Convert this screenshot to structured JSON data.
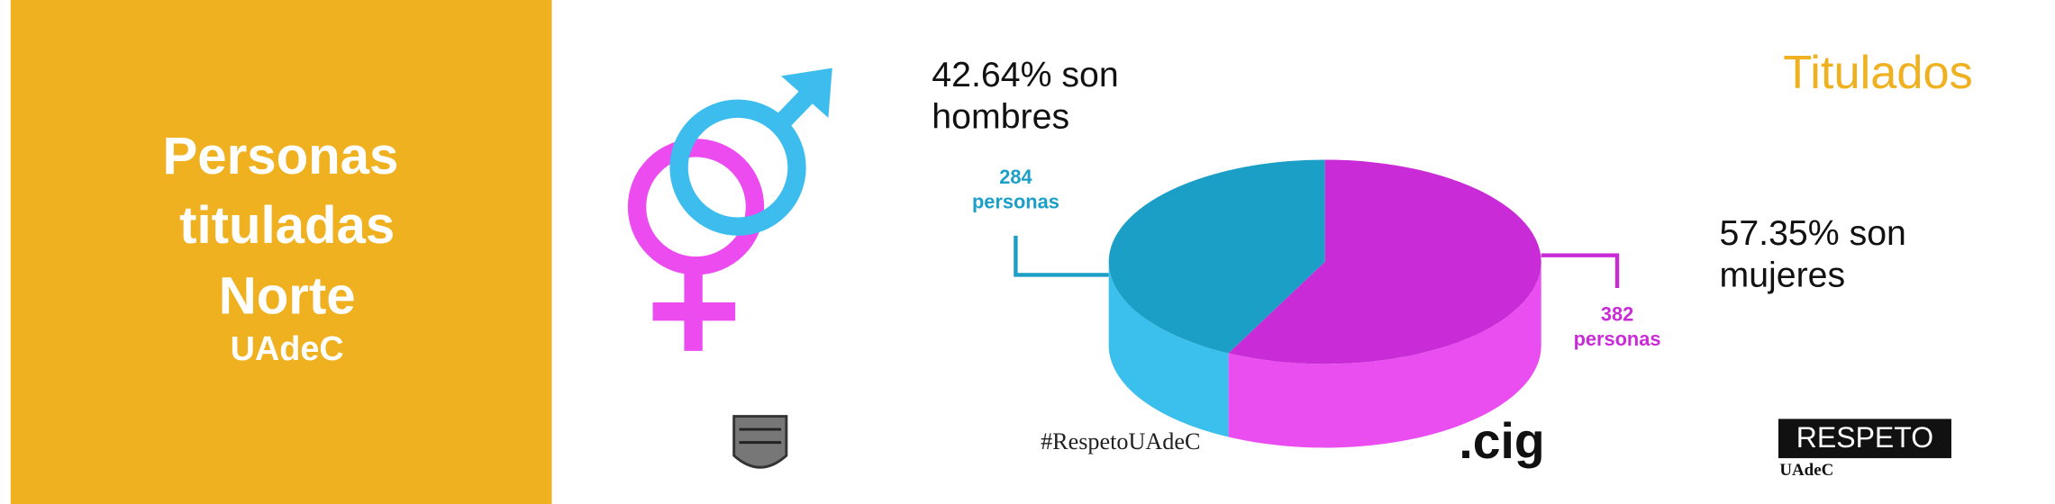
{
  "panel": {
    "title_lines": [
      "Personas",
      "tituladas",
      "Norte"
    ],
    "subtitle": "UAdeC"
  },
  "chart_data": {
    "type": "pie",
    "title": "Titulados",
    "values": [
      284,
      382
    ],
    "value_labels": [
      "284 personas",
      "382 personas"
    ],
    "colors": [
      "#1b9fc6",
      "#c92bd6"
    ],
    "side_colors": [
      "#3bbfed",
      "#ea4ef0"
    ],
    "annotations": [
      [
        "42.64% son",
        "hombres"
      ],
      [
        "57.35% son",
        "mujeres"
      ]
    ]
  },
  "footer": {
    "hashtag": "#RespetoUAdeC",
    "cig": ".cig",
    "respeto": "RESPETO",
    "respeto_sub": "UAdeC"
  }
}
